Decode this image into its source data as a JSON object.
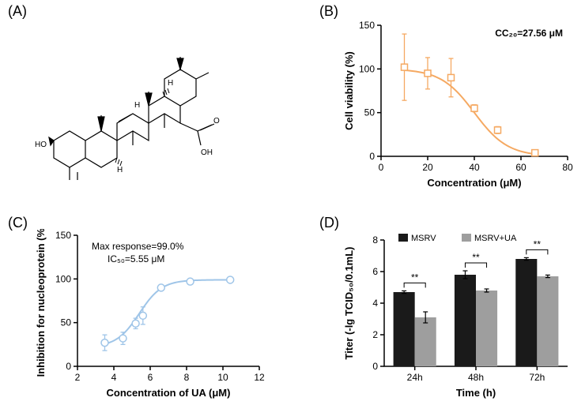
{
  "panelA": {
    "label": "(A)"
  },
  "panelB": {
    "label": "(B)",
    "annotation": "CC₂₀=27.56 μM",
    "xlabel": "Concentration (μM)",
    "ylabel": "Cell viability (%)",
    "xlim": [
      0,
      80
    ],
    "xticks": [
      0,
      20,
      40,
      60,
      80
    ],
    "ylim": [
      0,
      150
    ],
    "yticks": [
      0,
      50,
      100,
      150
    ],
    "line_color": "#f5a962",
    "marker_color": "#f5a962",
    "data": [
      {
        "x": 10,
        "y": 102,
        "err": 38
      },
      {
        "x": 20,
        "y": 95,
        "err": 18
      },
      {
        "x": 30,
        "y": 90,
        "err": 22
      },
      {
        "x": 40,
        "y": 55,
        "err": 4
      },
      {
        "x": 50,
        "y": 30,
        "err": 4
      },
      {
        "x": 66,
        "y": 4,
        "err": 3
      }
    ]
  },
  "panelC": {
    "label": "(C)",
    "annotation1": "Max response=99.0%",
    "annotation2": "IC₅₀=5.55 μM",
    "xlabel": "Concentration of UA (μM)",
    "ylabel": "Inhibition for nucleoprotein (%)",
    "xlim": [
      2,
      12
    ],
    "xticks": [
      2,
      4,
      6,
      8,
      10,
      12
    ],
    "ylim": [
      0,
      150
    ],
    "yticks": [
      0,
      50,
      100,
      150
    ],
    "line_color": "#9fc5e8",
    "marker_color": "#9fc5e8",
    "data": [
      {
        "x": 3.5,
        "y": 27,
        "err": 9
      },
      {
        "x": 4.5,
        "y": 32,
        "err": 7
      },
      {
        "x": 5.2,
        "y": 49,
        "err": 6
      },
      {
        "x": 5.6,
        "y": 58,
        "err": 10
      },
      {
        "x": 6.6,
        "y": 90,
        "err": 3
      },
      {
        "x": 8.2,
        "y": 97,
        "err": 3
      },
      {
        "x": 10.4,
        "y": 99,
        "err": 2
      }
    ]
  },
  "panelD": {
    "label": "(D)",
    "xlabel": "Time (h)",
    "ylabel": "Titer (-lg TCID₅₀/0.1mL)",
    "ylim": [
      0,
      8
    ],
    "yticks": [
      0,
      2,
      4,
      6,
      8
    ],
    "categories": [
      "24h",
      "48h",
      "72h"
    ],
    "series": [
      {
        "name": "MSRV",
        "color": "#1a1a1a",
        "values": [
          4.7,
          5.8,
          6.8
        ],
        "err": [
          0.08,
          0.25,
          0.08
        ]
      },
      {
        "name": "MSRV+UA",
        "color": "#9e9e9e",
        "values": [
          3.1,
          4.8,
          5.7
        ],
        "err": [
          0.35,
          0.1,
          0.08
        ]
      }
    ],
    "bar_width": 0.35,
    "sig_marker": "**"
  }
}
